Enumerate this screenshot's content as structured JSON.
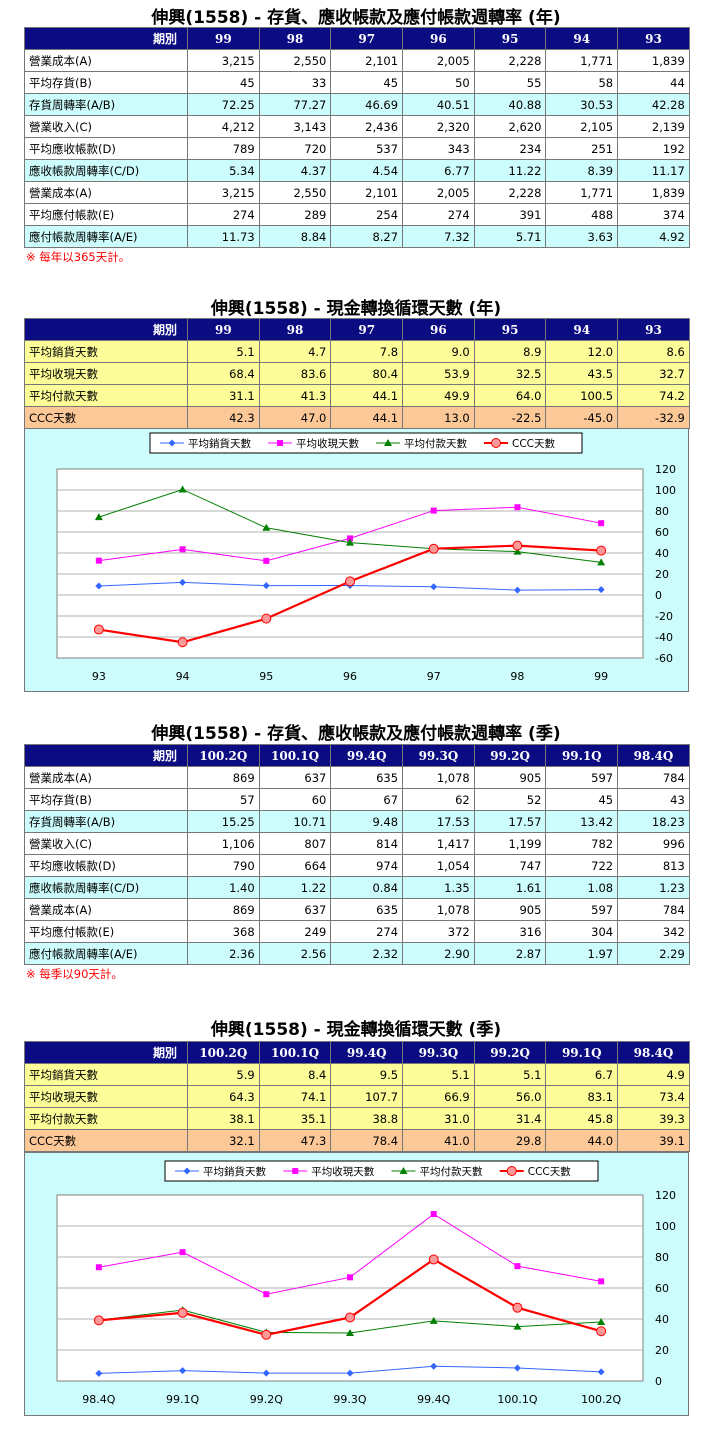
{
  "annual_turnover": {
    "title": "伸興(1558) - 存貨、應收帳款及應付帳款週轉率 (年)",
    "header_label": "期別",
    "periods": [
      "99",
      "98",
      "97",
      "96",
      "95",
      "94",
      "93"
    ],
    "rows": [
      {
        "label": "營業成本(A)",
        "values": [
          "3,215",
          "2,550",
          "2,101",
          "2,005",
          "2,228",
          "1,771",
          "1,839"
        ]
      },
      {
        "label": "平均存貨(B)",
        "values": [
          "45",
          "33",
          "45",
          "50",
          "55",
          "58",
          "44"
        ]
      },
      {
        "label": "存貨周轉率(A/B)",
        "values": [
          "72.25",
          "77.27",
          "46.69",
          "40.51",
          "40.88",
          "30.53",
          "42.28"
        ]
      },
      {
        "label": "營業收入(C)",
        "values": [
          "4,212",
          "3,143",
          "2,436",
          "2,320",
          "2,620",
          "2,105",
          "2,139"
        ]
      },
      {
        "label": "平均應收帳款(D)",
        "values": [
          "789",
          "720",
          "537",
          "343",
          "234",
          "251",
          "192"
        ]
      },
      {
        "label": "應收帳款周轉率(C/D)",
        "values": [
          "5.34",
          "4.37",
          "4.54",
          "6.77",
          "11.22",
          "8.39",
          "11.17"
        ]
      },
      {
        "label": "營業成本(A)",
        "values": [
          "3,215",
          "2,550",
          "2,101",
          "2,005",
          "2,228",
          "1,771",
          "1,839"
        ]
      },
      {
        "label": "平均應付帳款(E)",
        "values": [
          "274",
          "289",
          "254",
          "274",
          "391",
          "488",
          "374"
        ]
      },
      {
        "label": "應付帳款周轉率(A/E)",
        "values": [
          "11.73",
          "8.84",
          "8.27",
          "7.32",
          "5.71",
          "3.63",
          "4.92"
        ]
      }
    ],
    "note": "※ 每年以365天計。"
  },
  "annual_ccc": {
    "title": "伸興(1558) - 現金轉換循環天數 (年)",
    "header_label": "期別",
    "periods": [
      "99",
      "98",
      "97",
      "96",
      "95",
      "94",
      "93"
    ],
    "rows": [
      {
        "label": "平均銷貨天數",
        "values": [
          "5.1",
          "4.7",
          "7.8",
          "9.0",
          "8.9",
          "12.0",
          "8.6"
        ]
      },
      {
        "label": "平均收現天數",
        "values": [
          "68.4",
          "83.6",
          "80.4",
          "53.9",
          "32.5",
          "43.5",
          "32.7"
        ]
      },
      {
        "label": "平均付款天數",
        "values": [
          "31.1",
          "41.3",
          "44.1",
          "49.9",
          "64.0",
          "100.5",
          "74.2"
        ]
      },
      {
        "label": "CCC天數",
        "values": [
          "42.3",
          "47.0",
          "44.1",
          "13.0",
          "-22.5",
          "-45.0",
          "-32.9"
        ]
      }
    ]
  },
  "quarterly_turnover": {
    "title": "伸興(1558) - 存貨、應收帳款及應付帳款週轉率 (季)",
    "header_label": "期別",
    "periods": [
      "100.2Q",
      "100.1Q",
      "99.4Q",
      "99.3Q",
      "99.2Q",
      "99.1Q",
      "98.4Q"
    ],
    "rows": [
      {
        "label": "營業成本(A)",
        "values": [
          "869",
          "637",
          "635",
          "1,078",
          "905",
          "597",
          "784"
        ]
      },
      {
        "label": "平均存貨(B)",
        "values": [
          "57",
          "60",
          "67",
          "62",
          "52",
          "45",
          "43"
        ]
      },
      {
        "label": "存貨周轉率(A/B)",
        "values": [
          "15.25",
          "10.71",
          "9.48",
          "17.53",
          "17.57",
          "13.42",
          "18.23"
        ]
      },
      {
        "label": "營業收入(C)",
        "values": [
          "1,106",
          "807",
          "814",
          "1,417",
          "1,199",
          "782",
          "996"
        ]
      },
      {
        "label": "平均應收帳款(D)",
        "values": [
          "790",
          "664",
          "974",
          "1,054",
          "747",
          "722",
          "813"
        ]
      },
      {
        "label": "應收帳款周轉率(C/D)",
        "values": [
          "1.40",
          "1.22",
          "0.84",
          "1.35",
          "1.61",
          "1.08",
          "1.23"
        ]
      },
      {
        "label": "營業成本(A)",
        "values": [
          "869",
          "637",
          "635",
          "1,078",
          "905",
          "597",
          "784"
        ]
      },
      {
        "label": "平均應付帳款(E)",
        "values": [
          "368",
          "249",
          "274",
          "372",
          "316",
          "304",
          "342"
        ]
      },
      {
        "label": "應付帳款周轉率(A/E)",
        "values": [
          "2.36",
          "2.56",
          "2.32",
          "2.90",
          "2.87",
          "1.97",
          "2.29"
        ]
      }
    ],
    "note": "※ 每季以90天計。"
  },
  "quarterly_ccc": {
    "title": "伸興(1558) - 現金轉換循環天數 (季)",
    "header_label": "期別",
    "periods": [
      "100.2Q",
      "100.1Q",
      "99.4Q",
      "99.3Q",
      "99.2Q",
      "99.1Q",
      "98.4Q"
    ],
    "rows": [
      {
        "label": "平均銷貨天數",
        "values": [
          "5.9",
          "8.4",
          "9.5",
          "5.1",
          "5.1",
          "6.7",
          "4.9"
        ]
      },
      {
        "label": "平均收現天數",
        "values": [
          "64.3",
          "74.1",
          "107.7",
          "66.9",
          "56.0",
          "83.1",
          "73.4"
        ]
      },
      {
        "label": "平均付款天數",
        "values": [
          "38.1",
          "35.1",
          "38.8",
          "31.0",
          "31.4",
          "45.8",
          "39.3"
        ]
      },
      {
        "label": "CCC天數",
        "values": [
          "32.1",
          "47.3",
          "78.4",
          "41.0",
          "29.8",
          "44.0",
          "39.1"
        ]
      }
    ]
  },
  "chart_data": [
    {
      "type": "line",
      "categories": [
        "93",
        "94",
        "95",
        "96",
        "97",
        "98",
        "99"
      ],
      "ylim": [
        -60,
        120
      ],
      "yticks": [
        120,
        100,
        80,
        60,
        40,
        20,
        0,
        -20,
        -40,
        -60
      ],
      "grid": true,
      "legend_position": "top",
      "series": [
        {
          "name": "平均銷貨天數",
          "color": "#3366ff",
          "marker": "diamond",
          "values": [
            8.6,
            12.0,
            8.9,
            9.0,
            7.8,
            4.7,
            5.1
          ]
        },
        {
          "name": "平均收現天數",
          "color": "#ff00ff",
          "marker": "square",
          "values": [
            32.7,
            43.5,
            32.5,
            53.9,
            80.4,
            83.6,
            68.4
          ]
        },
        {
          "name": "平均付款天數",
          "color": "#008000",
          "marker": "triangle",
          "values": [
            74.2,
            100.5,
            64.0,
            49.9,
            44.1,
            41.3,
            31.1
          ]
        },
        {
          "name": "CCC天數",
          "color": "#ff0000",
          "marker": "circle",
          "values": [
            -32.9,
            -45.0,
            -22.5,
            13.0,
            44.1,
            47.0,
            42.3
          ]
        }
      ]
    },
    {
      "type": "line",
      "categories": [
        "98.4Q",
        "99.1Q",
        "99.2Q",
        "99.3Q",
        "99.4Q",
        "100.1Q",
        "100.2Q"
      ],
      "ylim": [
        0,
        120
      ],
      "yticks": [
        120,
        100,
        80,
        60,
        40,
        20,
        0
      ],
      "grid": true,
      "legend_position": "top",
      "series": [
        {
          "name": "平均銷貨天數",
          "color": "#3366ff",
          "marker": "diamond",
          "values": [
            4.9,
            6.7,
            5.1,
            5.1,
            9.5,
            8.4,
            5.9
          ]
        },
        {
          "name": "平均收現天數",
          "color": "#ff00ff",
          "marker": "square",
          "values": [
            73.4,
            83.1,
            56.0,
            66.9,
            107.7,
            74.1,
            64.3
          ]
        },
        {
          "name": "平均付款天數",
          "color": "#008000",
          "marker": "triangle",
          "values": [
            39.3,
            45.8,
            31.4,
            31.0,
            38.8,
            35.1,
            38.1
          ]
        },
        {
          "name": "CCC天數",
          "color": "#ff0000",
          "marker": "circle",
          "values": [
            39.1,
            44.0,
            29.8,
            41.0,
            78.4,
            47.3,
            32.1
          ]
        }
      ]
    }
  ]
}
